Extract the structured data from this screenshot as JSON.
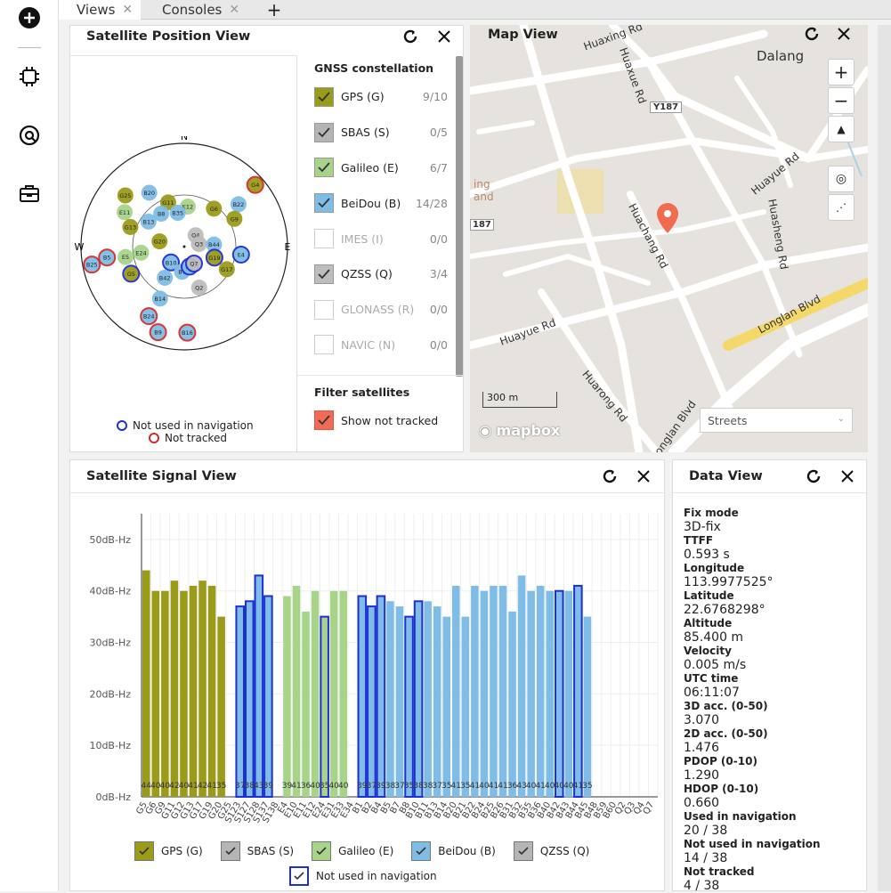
{
  "sidebar": {
    "icons": [
      "plus-circle-icon",
      "chip-icon",
      "gauge-icon",
      "briefcase-icon"
    ]
  },
  "tabs": [
    {
      "label": "Views",
      "active": true
    },
    {
      "label": "Consoles",
      "active": false
    }
  ],
  "position_view": {
    "title": "Satellite Position View",
    "compass": {
      "n": "N",
      "e": "E",
      "w": "W"
    },
    "legend_not_used": "Not used in navigation",
    "legend_not_tracked": "Not tracked",
    "gnss_heading": "GNSS constellation",
    "constellations": [
      {
        "label": "GPS (G)",
        "count": "9/10",
        "checked": true,
        "enabled": true,
        "color": "#9b9b1a"
      },
      {
        "label": "SBAS (S)",
        "count": "0/5",
        "checked": true,
        "enabled": true,
        "color": "#b5b5b5"
      },
      {
        "label": "Galileo (E)",
        "count": "6/7",
        "checked": true,
        "enabled": true,
        "color": "#a8d48a"
      },
      {
        "label": "BeiDou (B)",
        "count": "14/28",
        "checked": true,
        "enabled": true,
        "color": "#7fbde6"
      },
      {
        "label": "IMES (I)",
        "count": "0/0",
        "checked": false,
        "enabled": false,
        "color": "#fff"
      },
      {
        "label": "QZSS (Q)",
        "count": "3/4",
        "checked": true,
        "enabled": true,
        "color": "#bdbdbd"
      },
      {
        "label": "GLONASS (R)",
        "count": "0/0",
        "checked": false,
        "enabled": false,
        "color": "#fff"
      },
      {
        "label": "NAVIC (N)",
        "count": "0/0",
        "checked": false,
        "enabled": false,
        "color": "#fff"
      }
    ],
    "filter_heading": "Filter satellites",
    "filter_label": "Show not tracked",
    "filter_color": "#f26b55",
    "sats": [
      {
        "id": "G4",
        "az": 49,
        "el": 8,
        "c": "#9b9b1a",
        "ring": "red"
      },
      {
        "id": "B22",
        "az": 52,
        "el": 30,
        "c": "#7fbde6",
        "ring": ""
      },
      {
        "id": "G6",
        "az": 38,
        "el": 48,
        "c": "#9b9b1a",
        "ring": ""
      },
      {
        "id": "G9",
        "az": 61,
        "el": 40,
        "c": "#9b9b1a",
        "ring": ""
      },
      {
        "id": "G25",
        "az": 311,
        "el": 22,
        "c": "#9b9b1a",
        "ring": ""
      },
      {
        "id": "B20",
        "az": 327,
        "el": 34,
        "c": "#7fbde6",
        "ring": ""
      },
      {
        "id": "E11",
        "az": 300,
        "el": 30,
        "c": "#a8d48a",
        "ring": ""
      },
      {
        "id": "G11",
        "az": 340,
        "el": 49,
        "c": "#9b9b1a",
        "ring": ""
      },
      {
        "id": "E12",
        "az": 5,
        "el": 55,
        "c": "#a8d48a",
        "ring": ""
      },
      {
        "id": "B35",
        "az": 349,
        "el": 60,
        "c": "#7fbde6",
        "ring": ""
      },
      {
        "id": "B8",
        "az": 325,
        "el": 55,
        "c": "#7fbde6",
        "ring": ""
      },
      {
        "id": "G13",
        "az": 290,
        "el": 40,
        "c": "#9b9b1a",
        "ring": ""
      },
      {
        "id": "B13",
        "az": 305,
        "el": 52,
        "c": "#7fbde6",
        "ring": ""
      },
      {
        "id": "G20",
        "az": 282,
        "el": 68,
        "c": "#9b9b1a",
        "ring": ""
      },
      {
        "id": "Q4",
        "az": 45,
        "el": 76,
        "c": "#bdbdbd",
        "ring": ""
      },
      {
        "id": "Q3",
        "az": 80,
        "el": 77,
        "c": "#bdbdbd",
        "ring": ""
      },
      {
        "id": "B44",
        "az": 86,
        "el": 64,
        "c": "#7fbde6",
        "ring": ""
      },
      {
        "id": "E24",
        "az": 262,
        "el": 52,
        "c": "#a8d48a",
        "ring": ""
      },
      {
        "id": "B10",
        "az": 220,
        "el": 72,
        "c": "#7fbde6",
        "ring": "blue"
      },
      {
        "id": "E5",
        "az": 260,
        "el": 38,
        "c": "#a8d48a",
        "ring": ""
      },
      {
        "id": "B5",
        "az": 262,
        "el": 22,
        "c": "#7fbde6",
        "ring": "red"
      },
      {
        "id": "B25",
        "az": 259,
        "el": 8,
        "c": "#7fbde6",
        "ring": "red"
      },
      {
        "id": "G5",
        "az": 243,
        "el": 38,
        "c": "#9b9b1a",
        "ring": "blue"
      },
      {
        "id": "B42",
        "az": 212,
        "el": 58,
        "c": "#7fbde6",
        "ring": ""
      },
      {
        "id": "B7",
        "az": 185,
        "el": 68,
        "c": "#7fbde6",
        "ring": ""
      },
      {
        "id": "B4",
        "az": 165,
        "el": 72,
        "c": "#7fbde6",
        "ring": "blue"
      },
      {
        "id": "Q7",
        "az": 150,
        "el": 73,
        "c": "#bdbdbd",
        "ring": "blue"
      },
      {
        "id": "G19",
        "az": 110,
        "el": 62,
        "c": "#9b9b1a",
        "ring": "blue"
      },
      {
        "id": "E4",
        "az": 98,
        "el": 40,
        "c": "#7fbde6",
        "ring": "blue"
      },
      {
        "id": "G17",
        "az": 118,
        "el": 48,
        "c": "#9b9b1a",
        "ring": ""
      },
      {
        "id": "Q2",
        "az": 160,
        "el": 52,
        "c": "#bdbdbd",
        "ring": ""
      },
      {
        "id": "B14",
        "az": 205,
        "el": 40,
        "c": "#7fbde6",
        "ring": ""
      },
      {
        "id": "B24",
        "az": 207,
        "el": 22,
        "c": "#7fbde6",
        "ring": "red"
      },
      {
        "id": "B9",
        "az": 197,
        "el": 12,
        "c": "#7fbde6",
        "ring": "red"
      },
      {
        "id": "B16",
        "az": 178,
        "el": 15,
        "c": "#7fbde6",
        "ring": "red"
      }
    ]
  },
  "map_view": {
    "title": "Map View",
    "labels": [
      "Dalang",
      "Huaxing Rd",
      "Huaxue Rd",
      "Y187",
      "Huayue Rd",
      "Huachang Rd",
      "Huasheng Rd",
      "Longlan Blvd",
      "Huarong Rd",
      "Huayue Rd",
      "Longlan Blvd",
      "ing",
      "and",
      "187"
    ],
    "scale": "300 m",
    "style_select": "Streets",
    "attribution": "mapbox",
    "pin_color": "#ef6c4f"
  },
  "signal_view": {
    "title": "Satellite Signal View",
    "legend": [
      {
        "label": "GPS (G)",
        "color": "#9b9b1a"
      },
      {
        "label": "SBAS (S)",
        "color": "#b5b5b5"
      },
      {
        "label": "Galileo (E)",
        "color": "#a8d48a"
      },
      {
        "label": "BeiDou (B)",
        "color": "#7fbde6"
      },
      {
        "label": "QZSS (Q)",
        "color": "#b5b5b5"
      }
    ],
    "legend_not_used": "Not used in navigation"
  },
  "chart_data": {
    "type": "bar",
    "ylabel": "",
    "ylim": [
      0,
      55
    ],
    "yticks": [
      "0dB-Hz",
      "10dB-Hz",
      "20dB-Hz",
      "30dB-Hz",
      "40dB-Hz",
      "50dB-Hz"
    ],
    "categories": [
      "G5",
      "G6",
      "G9",
      "G11",
      "G12",
      "G13",
      "G17",
      "G19",
      "G20",
      "G25",
      "S123",
      "S127",
      "S128",
      "S137",
      "S138",
      "E4",
      "E10",
      "E11",
      "E12",
      "E24",
      "E31",
      "E33",
      "E34",
      "B1",
      "B2",
      "B4",
      "B5",
      "B7",
      "B8",
      "B10",
      "B11",
      "B13",
      "B14",
      "B20",
      "B21",
      "B22",
      "B24",
      "B25",
      "B26",
      "B31",
      "B32",
      "B35",
      "B36",
      "B40",
      "B42",
      "B43",
      "B44",
      "B45",
      "B48",
      "B59",
      "B60",
      "Q2",
      "Q3",
      "Q4",
      "Q7"
    ],
    "values": [
      44,
      40,
      40,
      42,
      40,
      41,
      42,
      41,
      35,
      0,
      37,
      38,
      43,
      39,
      0,
      39,
      41,
      36,
      40,
      35,
      40,
      40,
      0,
      39,
      37,
      39,
      38,
      37,
      35,
      38,
      38,
      37,
      35,
      41,
      35,
      41,
      40,
      41,
      41,
      36,
      43,
      40,
      41,
      40,
      40,
      40,
      41,
      35,
      0,
      0,
      0,
      0,
      0,
      0,
      0
    ],
    "colors": [
      "#9b9b1a",
      "#9b9b1a",
      "#9b9b1a",
      "#9b9b1a",
      "#9b9b1a",
      "#9b9b1a",
      "#9b9b1a",
      "#9b9b1a",
      "#9b9b1a",
      "#9b9b1a",
      "#7fbde6",
      "#7fbde6",
      "#7fbde6",
      "#7fbde6",
      "#7fbde6",
      "#a8d48a",
      "#a8d48a",
      "#a8d48a",
      "#a8d48a",
      "#a8d48a",
      "#a8d48a",
      "#a8d48a",
      "#a8d48a",
      "#7fbde6",
      "#7fbde6",
      "#7fbde6",
      "#7fbde6",
      "#7fbde6",
      "#7fbde6",
      "#7fbde6",
      "#7fbde6",
      "#7fbde6",
      "#7fbde6",
      "#7fbde6",
      "#7fbde6",
      "#7fbde6",
      "#7fbde6",
      "#7fbde6",
      "#7fbde6",
      "#7fbde6",
      "#7fbde6",
      "#7fbde6",
      "#7fbde6",
      "#7fbde6",
      "#7fbde6",
      "#7fbde6",
      "#7fbde6",
      "#7fbde6",
      "#b5b5b5",
      "#b5b5b5",
      "#b5b5b5",
      "#b5b5b5",
      "#b5b5b5",
      "#b5b5b5",
      "#b5b5b5"
    ],
    "not_used": [
      false,
      false,
      false,
      false,
      false,
      false,
      false,
      false,
      false,
      false,
      true,
      true,
      true,
      true,
      false,
      false,
      false,
      false,
      false,
      true,
      false,
      false,
      false,
      true,
      true,
      true,
      false,
      false,
      true,
      true,
      false,
      false,
      false,
      false,
      false,
      false,
      false,
      false,
      false,
      false,
      false,
      false,
      false,
      false,
      true,
      false,
      true,
      false,
      false,
      false,
      false,
      false,
      false,
      true,
      false
    ],
    "data_labels": "44404042404142413537384339413641403540403938373937353838373541354140414136434041404040413540404041 35",
    "grid": true,
    "legend_position": "bottom"
  },
  "data_view": {
    "title": "Data View",
    "items": [
      {
        "label": "Fix mode",
        "value": "3D-fix"
      },
      {
        "label": "TTFF",
        "value": "0.593 s"
      },
      {
        "label": "Longitude",
        "value": "113.9977525°"
      },
      {
        "label": "Latitude",
        "value": "22.6768298°"
      },
      {
        "label": "Altitude",
        "value": "85.400 m"
      },
      {
        "label": "Velocity",
        "value": "0.005 m/s"
      },
      {
        "label": "UTC time",
        "value": "06:11:07"
      },
      {
        "label": "3D acc. (0-50)",
        "value": "3.070"
      },
      {
        "label": "2D acc. (0-50)",
        "value": "1.476"
      },
      {
        "label": "PDOP (0-10)",
        "value": "1.290"
      },
      {
        "label": "HDOP (0-10)",
        "value": "0.660"
      },
      {
        "label": "Used in navigation",
        "value": "20 / 38"
      },
      {
        "label": "Not used in navigation",
        "value": "14 / 38"
      },
      {
        "label": "Not tracked",
        "value": "4 / 38"
      }
    ]
  }
}
